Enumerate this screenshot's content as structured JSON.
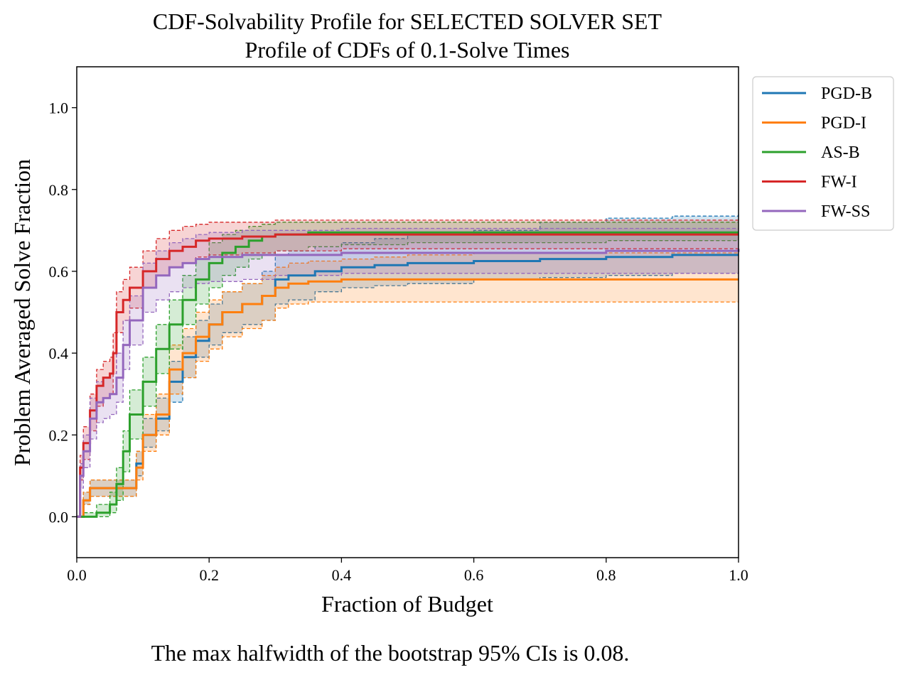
{
  "chart_data": {
    "type": "line",
    "title": "CDF-Solvability Profile for SELECTED SOLVER SET",
    "subtitle": "Profile of CDFs of 0.1-Solve Times",
    "xlabel": "Fraction of Budget",
    "ylabel": "Problem Averaged Solve Fraction",
    "xlim": [
      0,
      1
    ],
    "ylim": [
      -0.1,
      1.1
    ],
    "xticks": [
      "0.0",
      "0.2",
      "0.4",
      "0.6",
      "0.8",
      "1.0"
    ],
    "yticks": [
      "0.0",
      "0.2",
      "0.4",
      "0.6",
      "0.8",
      "1.0"
    ],
    "grid": false,
    "legend_position": "outside upper right",
    "footnote": "The max halfwidth of the bootstrap 95% CIs is 0.08.",
    "series": [
      {
        "name": "PGD-B",
        "color": "#1f77b4",
        "x": [
          0,
          0.01,
          0.02,
          0.08,
          0.09,
          0.1,
          0.12,
          0.14,
          0.16,
          0.18,
          0.2,
          0.22,
          0.25,
          0.28,
          0.3,
          0.32,
          0.36,
          0.4,
          0.45,
          0.5,
          0.6,
          0.7,
          0.8,
          0.9,
          1.0
        ],
        "y": [
          0,
          0.04,
          0.07,
          0.07,
          0.13,
          0.2,
          0.24,
          0.33,
          0.39,
          0.43,
          0.47,
          0.5,
          0.52,
          0.54,
          0.58,
          0.59,
          0.6,
          0.61,
          0.615,
          0.62,
          0.625,
          0.63,
          0.635,
          0.64,
          0.64
        ],
        "lower": [
          0,
          0.03,
          0.05,
          0.05,
          0.1,
          0.17,
          0.21,
          0.28,
          0.34,
          0.39,
          0.42,
          0.45,
          0.47,
          0.48,
          0.52,
          0.53,
          0.55,
          0.56,
          0.565,
          0.57,
          0.58,
          0.585,
          0.59,
          0.595,
          0.595
        ],
        "upper": [
          0,
          0.06,
          0.09,
          0.09,
          0.16,
          0.24,
          0.29,
          0.38,
          0.44,
          0.48,
          0.52,
          0.55,
          0.57,
          0.6,
          0.64,
          0.65,
          0.66,
          0.67,
          0.68,
          0.69,
          0.7,
          0.72,
          0.73,
          0.735,
          0.74
        ]
      },
      {
        "name": "PGD-I",
        "color": "#ff7f0e",
        "x": [
          0,
          0.01,
          0.02,
          0.08,
          0.09,
          0.1,
          0.12,
          0.14,
          0.16,
          0.18,
          0.2,
          0.22,
          0.25,
          0.28,
          0.3,
          0.32,
          0.35,
          0.4,
          0.45,
          0.5,
          0.6,
          0.7,
          0.8,
          0.9,
          1.0
        ],
        "y": [
          0,
          0.04,
          0.07,
          0.07,
          0.12,
          0.2,
          0.25,
          0.36,
          0.4,
          0.44,
          0.47,
          0.5,
          0.52,
          0.54,
          0.56,
          0.57,
          0.575,
          0.58,
          0.58,
          0.58,
          0.58,
          0.58,
          0.58,
          0.58,
          0.58
        ],
        "lower": [
          0,
          0.03,
          0.05,
          0.05,
          0.09,
          0.16,
          0.2,
          0.3,
          0.34,
          0.38,
          0.41,
          0.44,
          0.46,
          0.48,
          0.51,
          0.52,
          0.525,
          0.525,
          0.525,
          0.525,
          0.525,
          0.525,
          0.525,
          0.525,
          0.525
        ],
        "upper": [
          0,
          0.06,
          0.09,
          0.09,
          0.16,
          0.25,
          0.3,
          0.42,
          0.46,
          0.5,
          0.53,
          0.55,
          0.57,
          0.59,
          0.61,
          0.62,
          0.625,
          0.63,
          0.635,
          0.64,
          0.645,
          0.645,
          0.645,
          0.645,
          0.645
        ]
      },
      {
        "name": "AS-B",
        "color": "#2ca02c",
        "x": [
          0,
          0.01,
          0.03,
          0.05,
          0.06,
          0.07,
          0.08,
          0.1,
          0.12,
          0.14,
          0.16,
          0.18,
          0.2,
          0.22,
          0.24,
          0.26,
          0.28,
          0.3,
          0.35,
          0.4,
          0.5,
          0.6,
          0.8,
          1.0
        ],
        "y": [
          0,
          0.0,
          0.01,
          0.03,
          0.08,
          0.16,
          0.25,
          0.33,
          0.41,
          0.47,
          0.53,
          0.58,
          0.62,
          0.645,
          0.66,
          0.675,
          0.685,
          0.69,
          0.695,
          0.695,
          0.695,
          0.695,
          0.695,
          0.695
        ],
        "lower": [
          0,
          0.0,
          0.0,
          0.01,
          0.04,
          0.11,
          0.19,
          0.27,
          0.35,
          0.41,
          0.47,
          0.52,
          0.56,
          0.59,
          0.61,
          0.63,
          0.64,
          0.65,
          0.66,
          0.665,
          0.67,
          0.67,
          0.675,
          0.675
        ],
        "upper": [
          0,
          0.01,
          0.03,
          0.06,
          0.12,
          0.21,
          0.31,
          0.39,
          0.47,
          0.53,
          0.59,
          0.63,
          0.67,
          0.69,
          0.7,
          0.71,
          0.715,
          0.72,
          0.72,
          0.72,
          0.72,
          0.72,
          0.72,
          0.72
        ]
      },
      {
        "name": "FW-I",
        "color": "#d62728",
        "x": [
          0,
          0.005,
          0.01,
          0.02,
          0.03,
          0.04,
          0.05,
          0.055,
          0.06,
          0.07,
          0.08,
          0.1,
          0.12,
          0.14,
          0.16,
          0.18,
          0.2,
          0.25,
          0.3,
          0.4,
          0.6,
          0.8,
          1.0
        ],
        "y": [
          0,
          0.12,
          0.18,
          0.26,
          0.32,
          0.34,
          0.35,
          0.4,
          0.5,
          0.53,
          0.56,
          0.6,
          0.63,
          0.65,
          0.66,
          0.675,
          0.68,
          0.685,
          0.69,
          0.69,
          0.69,
          0.69,
          0.69
        ],
        "lower": [
          0,
          0.09,
          0.14,
          0.21,
          0.27,
          0.29,
          0.3,
          0.35,
          0.45,
          0.48,
          0.51,
          0.56,
          0.59,
          0.61,
          0.62,
          0.635,
          0.64,
          0.645,
          0.65,
          0.655,
          0.655,
          0.655,
          0.655
        ],
        "upper": [
          0,
          0.15,
          0.22,
          0.3,
          0.36,
          0.38,
          0.39,
          0.45,
          0.55,
          0.58,
          0.61,
          0.65,
          0.68,
          0.7,
          0.71,
          0.715,
          0.72,
          0.72,
          0.725,
          0.725,
          0.725,
          0.725,
          0.725
        ]
      },
      {
        "name": "FW-SS",
        "color": "#9467bd",
        "x": [
          0,
          0.005,
          0.01,
          0.02,
          0.03,
          0.04,
          0.05,
          0.06,
          0.07,
          0.08,
          0.1,
          0.12,
          0.14,
          0.16,
          0.18,
          0.2,
          0.25,
          0.3,
          0.4,
          0.5,
          0.6,
          0.8,
          1.0
        ],
        "y": [
          0,
          0.1,
          0.16,
          0.24,
          0.28,
          0.29,
          0.3,
          0.34,
          0.42,
          0.48,
          0.56,
          0.59,
          0.61,
          0.62,
          0.63,
          0.635,
          0.64,
          0.64,
          0.645,
          0.645,
          0.645,
          0.65,
          0.655
        ],
        "lower": [
          0,
          0.07,
          0.12,
          0.19,
          0.23,
          0.24,
          0.25,
          0.28,
          0.36,
          0.42,
          0.5,
          0.53,
          0.55,
          0.56,
          0.57,
          0.575,
          0.58,
          0.59,
          0.595,
          0.595,
          0.595,
          0.595,
          0.6
        ],
        "upper": [
          0,
          0.13,
          0.2,
          0.29,
          0.33,
          0.34,
          0.35,
          0.4,
          0.48,
          0.54,
          0.62,
          0.65,
          0.67,
          0.68,
          0.69,
          0.695,
          0.7,
          0.7,
          0.705,
          0.705,
          0.705,
          0.705,
          0.705
        ]
      }
    ]
  }
}
